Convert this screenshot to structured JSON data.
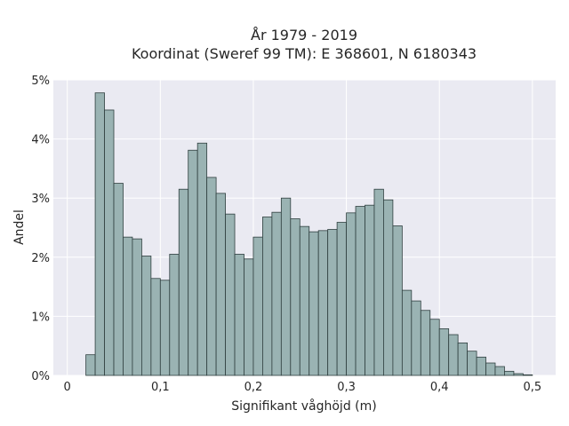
{
  "chart_data": {
    "type": "bar",
    "title_lines": [
      "År 1979 - 2019",
      "Koordinat (Sweref 99 TM): E 368601, N 6180343"
    ],
    "xlabel": "Signifikant våghöjd (m)",
    "ylabel": "Andel",
    "xlim": [
      -0.015,
      0.525
    ],
    "ylim": [
      0,
      5
    ],
    "xticks": [
      0,
      0.1,
      0.2,
      0.3,
      0.4,
      0.5
    ],
    "xtick_labels": [
      "0",
      "0,1",
      "0,2",
      "0,3",
      "0,4",
      "0,5"
    ],
    "yticks": [
      0,
      1,
      2,
      3,
      4,
      5
    ],
    "ytick_labels": [
      "0%",
      "1%",
      "2%",
      "3%",
      "4%",
      "5%"
    ],
    "grid": true,
    "bin_width": 0.01,
    "bin_starts": [
      0.02,
      0.03,
      0.04,
      0.05,
      0.06,
      0.07,
      0.08,
      0.09,
      0.1,
      0.11,
      0.12,
      0.13,
      0.14,
      0.15,
      0.16,
      0.17,
      0.18,
      0.19,
      0.2,
      0.21,
      0.22,
      0.23,
      0.24,
      0.25,
      0.26,
      0.27,
      0.28,
      0.29,
      0.3,
      0.31,
      0.32,
      0.33,
      0.34,
      0.35,
      0.36,
      0.37,
      0.38,
      0.39,
      0.4,
      0.41,
      0.42,
      0.43,
      0.44,
      0.45,
      0.46,
      0.47,
      0.48,
      0.49
    ],
    "values": [
      0.35,
      4.78,
      4.49,
      3.25,
      2.34,
      2.31,
      2.02,
      1.64,
      1.61,
      2.05,
      3.15,
      3.81,
      3.93,
      3.35,
      3.08,
      2.73,
      2.05,
      1.97,
      2.34,
      2.68,
      2.76,
      3.0,
      2.65,
      2.52,
      2.43,
      2.45,
      2.47,
      2.59,
      2.75,
      2.86,
      2.88,
      3.15,
      2.97,
      2.53,
      1.44,
      1.26,
      1.1,
      0.95,
      0.79,
      0.69,
      0.55,
      0.41,
      0.31,
      0.21,
      0.15,
      0.07,
      0.03,
      0.01
    ],
    "colors": {
      "background": "#eaeaf2",
      "bar_fill": "#9ab3b3",
      "bar_edge": "#2f3f3f"
    }
  }
}
